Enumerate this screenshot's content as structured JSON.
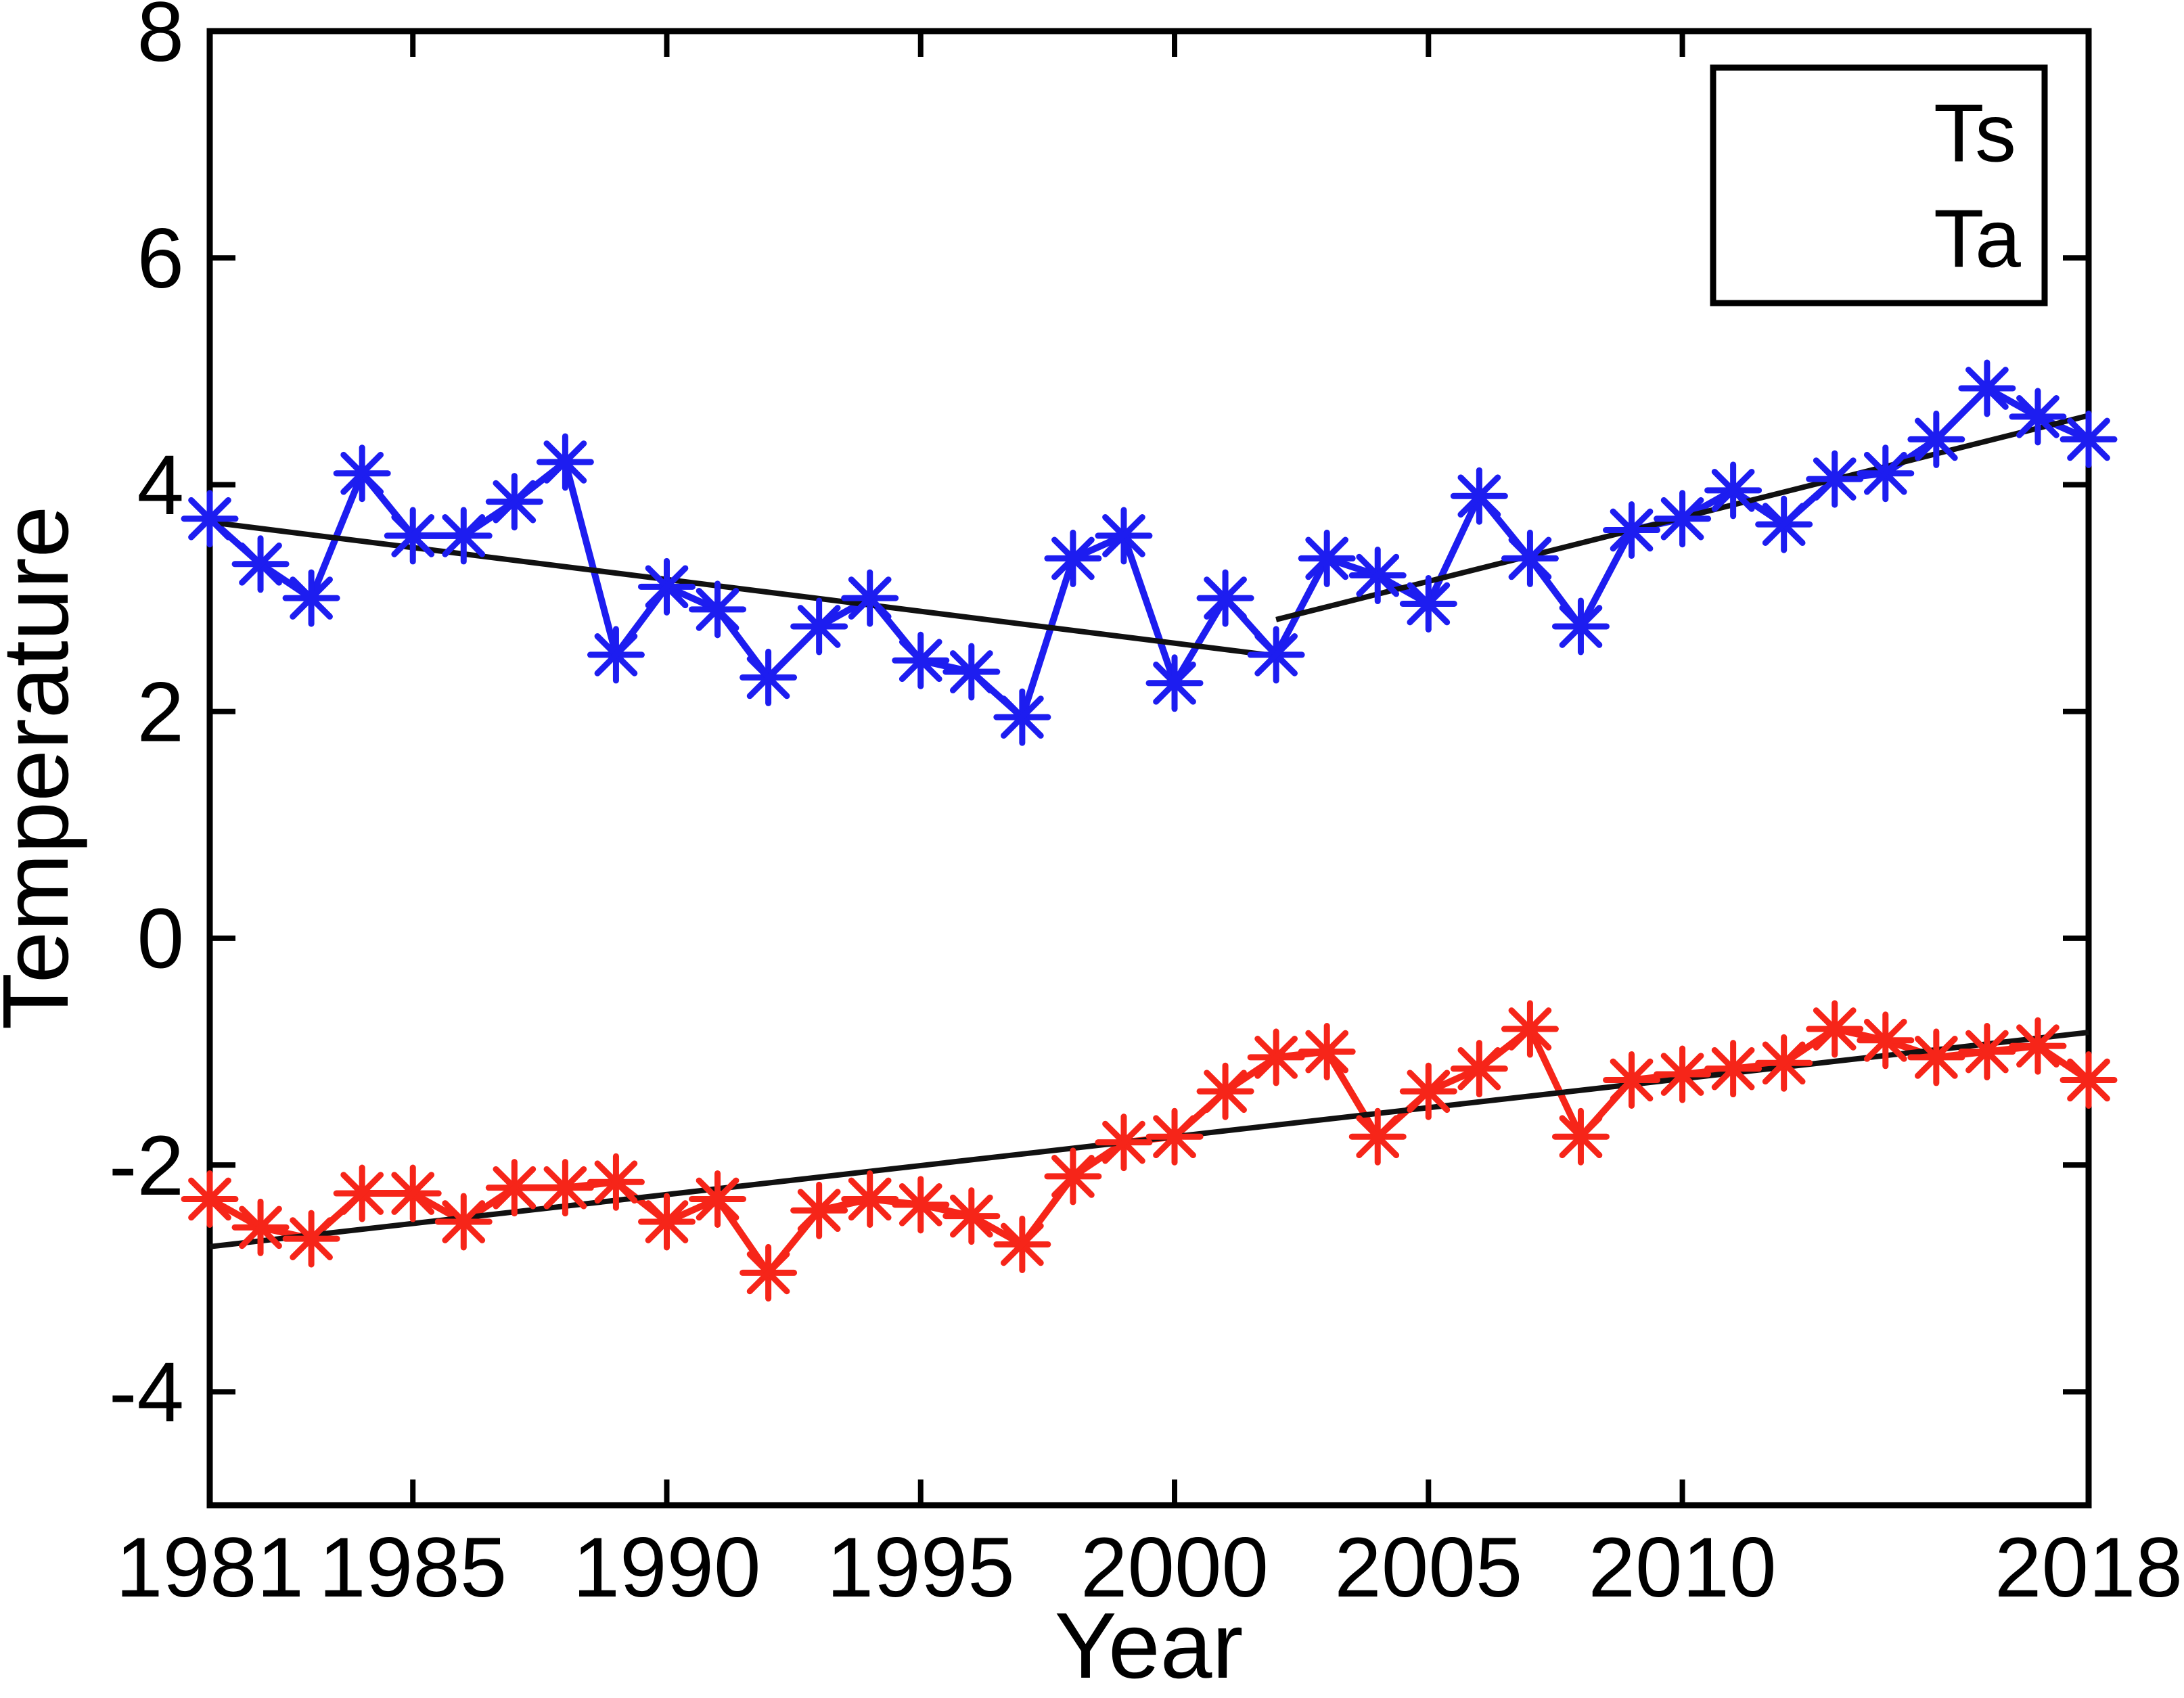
{
  "chart_data": {
    "type": "line",
    "title": "",
    "xlabel": "Year",
    "ylabel": "Temperature",
    "xlim": [
      1981,
      2018
    ],
    "ylim": [
      -5,
      8
    ],
    "grid": false,
    "xticks": [
      1981,
      1985,
      1990,
      1995,
      2000,
      2005,
      2010,
      2018
    ],
    "yticks": [
      8,
      6,
      4,
      2,
      0,
      -2,
      -4
    ],
    "x": [
      1981,
      1982,
      1983,
      1984,
      1985,
      1986,
      1987,
      1988,
      1989,
      1990,
      1991,
      1992,
      1993,
      1994,
      1995,
      1996,
      1997,
      1998,
      1999,
      2000,
      2001,
      2002,
      2003,
      2004,
      2005,
      2006,
      2007,
      2008,
      2009,
      2010,
      2011,
      2012,
      2013,
      2014,
      2015,
      2016,
      2017,
      2018
    ],
    "series": [
      {
        "name": "Ts",
        "color": "#1d1df0",
        "marker": "asterisk",
        "values": [
          3.7,
          3.3,
          3.0,
          4.1,
          3.55,
          3.55,
          3.85,
          4.2,
          2.5,
          3.1,
          2.9,
          2.3,
          2.75,
          3.0,
          2.45,
          2.35,
          1.95,
          3.35,
          3.55,
          2.25,
          3.0,
          2.5,
          3.35,
          3.2,
          2.95,
          3.9,
          3.35,
          2.75,
          3.6,
          3.7,
          3.95,
          3.65,
          4.05,
          4.1,
          4.4,
          4.85,
          4.6,
          4.4
        ]
      },
      {
        "name": "Ta",
        "color": "#f62519",
        "marker": "asterisk",
        "values": [
          -2.3,
          -2.55,
          -2.65,
          -2.25,
          -2.25,
          -2.5,
          -2.2,
          -2.2,
          -2.15,
          -2.5,
          -2.3,
          -2.95,
          -2.4,
          -2.3,
          -2.35,
          -2.45,
          -2.7,
          -2.1,
          -1.8,
          -1.75,
          -1.35,
          -1.05,
          -1.0,
          -1.75,
          -1.35,
          -1.15,
          -0.8,
          -1.75,
          -1.25,
          -1.2,
          -1.15,
          -1.1,
          -0.8,
          -0.9,
          -1.05,
          -1.0,
          -0.95,
          -1.25
        ]
      }
    ],
    "trend_lines": [
      {
        "series": "Ts",
        "color": "#111111",
        "points": [
          [
            1981,
            3.67
          ],
          [
            2002,
            2.49
          ]
        ]
      },
      {
        "series": "Ts",
        "color": "#111111",
        "points": [
          [
            2002,
            2.81
          ],
          [
            2018,
            4.61
          ]
        ]
      },
      {
        "series": "Ta",
        "color": "#111111",
        "points": [
          [
            1981,
            -2.72
          ],
          [
            2018,
            -0.83
          ]
        ]
      }
    ],
    "legend": {
      "position": "top-right",
      "entries": [
        "Ts",
        "Ta"
      ]
    }
  }
}
